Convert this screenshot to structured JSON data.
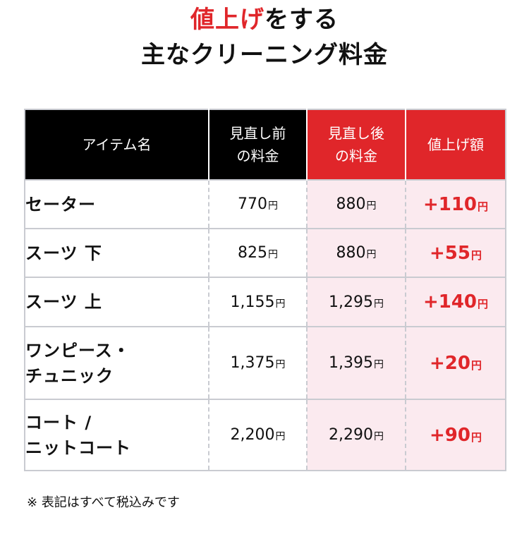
{
  "title": {
    "line1_highlight": "値上げ",
    "line1_rest": "をする",
    "line2": "主なクリーニング料金"
  },
  "table": {
    "headers": {
      "item": "アイテム名",
      "before_l1": "見直し前",
      "before_l2": "の料金",
      "after_l1": "見直し後",
      "after_l2": "の料金",
      "increase": "値上げ額"
    },
    "currency": "円",
    "rows": [
      {
        "item_l1": "セーター",
        "item_l2": "",
        "before": "770",
        "after": "880",
        "increase": "+110"
      },
      {
        "item_l1": "スーツ 下",
        "item_l2": "",
        "before": "825",
        "after": "880",
        "increase": "+55"
      },
      {
        "item_l1": "スーツ 上",
        "item_l2": "",
        "before": "1,155",
        "after": "1,295",
        "increase": "+140"
      },
      {
        "item_l1": "ワンピース・",
        "item_l2": "チュニック",
        "before": "1,375",
        "after": "1,395",
        "increase": "+20"
      },
      {
        "item_l1": "コート /",
        "item_l2": "ニットコート",
        "before": "2,200",
        "after": "2,290",
        "increase": "+90"
      }
    ]
  },
  "note": "※ 表記はすべて税込みです",
  "colors": {
    "accent": "#e0262a",
    "header_dark": "#000000",
    "highlight_bg": "#fbeaef",
    "border": "#c9cbd1"
  }
}
